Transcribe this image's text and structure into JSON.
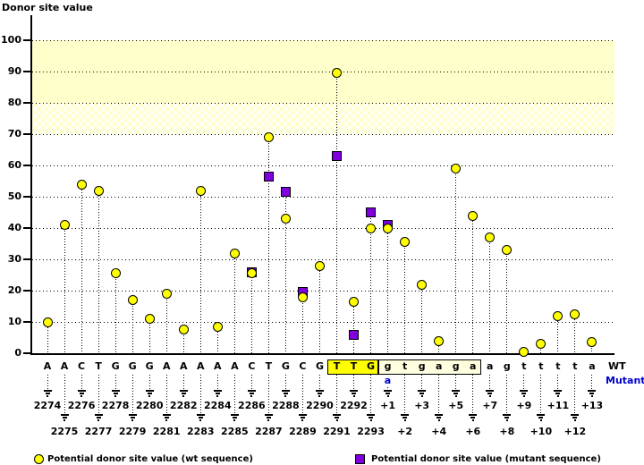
{
  "colors": {
    "wt_marker": "#FFFF00",
    "mutant_marker": "#8000DD",
    "band": "#FFFFCC",
    "highlight": "#FFFF00",
    "intron_box_bg": "#FFFFE0",
    "mutant_text": "#0000CC"
  },
  "labels": {
    "wt": "WT",
    "mutant": "Mutant"
  },
  "legend": {
    "wt": "Potential donor site value (wt sequence)",
    "mutant": "Potential donor site value (mutant sequence)"
  },
  "chart_data": {
    "type": "scatter",
    "title": "Donor site value",
    "ylabel": "Donor site value",
    "xlabel": "",
    "ylim": [
      0,
      110
    ],
    "yticks": [
      0,
      10,
      20,
      30,
      40,
      50,
      60,
      70,
      80,
      90,
      100
    ],
    "grid": "dotted-horizontal",
    "threshold_bands": [
      {
        "range": [
          80,
          100
        ],
        "style": "solid"
      },
      {
        "range": [
          70,
          80
        ],
        "style": "hatched"
      }
    ],
    "series": [
      {
        "name": "Potential donor site value (wt sequence)",
        "marker": "circle",
        "color": "#FFFF00"
      },
      {
        "name": "Potential donor site value (mutant sequence)",
        "marker": "square",
        "color": "#8000DD"
      }
    ],
    "positions": [
      {
        "base": "A",
        "label": "2274",
        "wt": 10,
        "mutant": null
      },
      {
        "base": "A",
        "label": "2275",
        "wt": 41,
        "mutant": null
      },
      {
        "base": "C",
        "label": "2276",
        "wt": 54,
        "mutant": null
      },
      {
        "base": "T",
        "label": "2277",
        "wt": 52,
        "mutant": null
      },
      {
        "base": "G",
        "label": "2278",
        "wt": 25.5,
        "mutant": null
      },
      {
        "base": "G",
        "label": "2279",
        "wt": 17,
        "mutant": null
      },
      {
        "base": "G",
        "label": "2280",
        "wt": 11,
        "mutant": null
      },
      {
        "base": "A",
        "label": "2281",
        "wt": 19,
        "mutant": null
      },
      {
        "base": "A",
        "label": "2282",
        "wt": 7.5,
        "mutant": null
      },
      {
        "base": "A",
        "label": "2283",
        "wt": 52,
        "mutant": null
      },
      {
        "base": "A",
        "label": "2284",
        "wt": 8.5,
        "mutant": null
      },
      {
        "base": "A",
        "label": "2285",
        "wt": 32,
        "mutant": null
      },
      {
        "base": "C",
        "label": "2286",
        "wt": 25.5,
        "mutant": 26
      },
      {
        "base": "T",
        "label": "2287",
        "wt": 69,
        "mutant": 56.5
      },
      {
        "base": "G",
        "label": "2288",
        "wt": 43,
        "mutant": 51.5
      },
      {
        "base": "C",
        "label": "2289",
        "wt": 18,
        "mutant": 19.5
      },
      {
        "base": "G",
        "label": "2290",
        "wt": 28,
        "mutant": null
      },
      {
        "base": "T",
        "label": "2291",
        "wt": 89.5,
        "mutant": 63
      },
      {
        "base": "T",
        "label": "2292",
        "wt": 16.5,
        "mutant": 6
      },
      {
        "base": "G",
        "label": "2293",
        "wt": 40,
        "mutant": 45
      },
      {
        "base": "g",
        "label": "+1",
        "wt": 40,
        "mutant": 41
      },
      {
        "base": "t",
        "label": "+2",
        "wt": 35.5,
        "mutant": null
      },
      {
        "base": "g",
        "label": "+3",
        "wt": 22,
        "mutant": null
      },
      {
        "base": "a",
        "label": "+4",
        "wt": 4,
        "mutant": null
      },
      {
        "base": "g",
        "label": "+5",
        "wt": 59,
        "mutant": null
      },
      {
        "base": "a",
        "label": "+6",
        "wt": 44,
        "mutant": null
      },
      {
        "base": "a",
        "label": "+7",
        "wt": 37,
        "mutant": null
      },
      {
        "base": "g",
        "label": "+8",
        "wt": 33,
        "mutant": null
      },
      {
        "base": "t",
        "label": "+9",
        "wt": 0.5,
        "mutant": null
      },
      {
        "base": "t",
        "label": "+10",
        "wt": 3,
        "mutant": null
      },
      {
        "base": "t",
        "label": "+11",
        "wt": 12,
        "mutant": null
      },
      {
        "base": "t",
        "label": "+12",
        "wt": 12.5,
        "mutant": null
      },
      {
        "base": "a",
        "label": "+13",
        "wt": 3.5,
        "mutant": null
      }
    ],
    "highlight_box": {
      "bases": "TTG",
      "positions": [
        "2291",
        "2292",
        "2293"
      ]
    },
    "intron_box": {
      "bases": "gtgaga",
      "positions": [
        "+1",
        "+2",
        "+3",
        "+4",
        "+5",
        "+6"
      ]
    },
    "mutation": {
      "position": "+1",
      "wt_base": "g",
      "mutant_base": "a"
    }
  }
}
